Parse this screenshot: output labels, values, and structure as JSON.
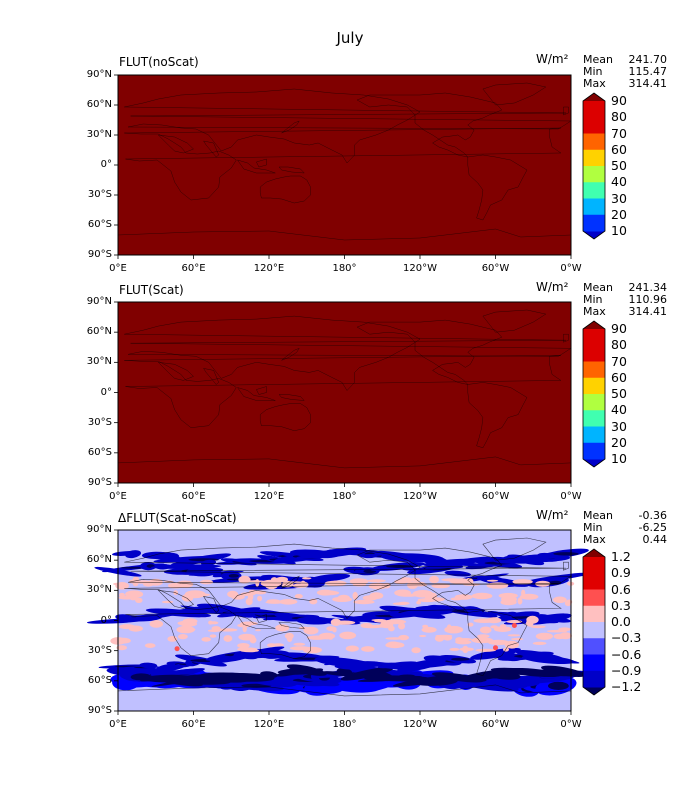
{
  "figure": {
    "title": "July"
  },
  "chart_data": [
    {
      "type": "heatmap",
      "title": "FLUT(noScat)",
      "units": "W/m²",
      "stats": {
        "labels": [
          "Mean",
          "Min",
          "Max"
        ],
        "values": [
          "241.70",
          "115.47",
          "314.41"
        ]
      },
      "x_ticks": [
        "0°E",
        "60°E",
        "120°E",
        "180°",
        "120°W",
        "60°W",
        "0°W"
      ],
      "y_ticks": [
        "90°N",
        "60°N",
        "30°N",
        "0°",
        "30°S",
        "60°S",
        "90°S"
      ],
      "colorbar": {
        "levels": [
          10,
          20,
          30,
          40,
          50,
          60,
          70,
          80,
          90
        ],
        "labels": [
          "90",
          "80",
          "70",
          "60",
          "50",
          "40",
          "30",
          "20",
          "10"
        ],
        "colors": [
          "#0000c8",
          "#0032ff",
          "#00b4ff",
          "#40ffb0",
          "#b0ff40",
          "#ffd200",
          "#ff6400",
          "#dc0000",
          "#800000"
        ],
        "extend": "both"
      },
      "field": "uniform above colorbar max",
      "fill_color": "#800000"
    },
    {
      "type": "heatmap",
      "title": "FLUT(Scat)",
      "units": "W/m²",
      "stats": {
        "labels": [
          "Mean",
          "Min",
          "Max"
        ],
        "values": [
          "241.34",
          "110.96",
          "314.41"
        ]
      },
      "x_ticks": [
        "0°E",
        "60°E",
        "120°E",
        "180°",
        "120°W",
        "60°W",
        "0°W"
      ],
      "y_ticks": [
        "90°N",
        "60°N",
        "30°N",
        "0°",
        "30°S",
        "60°S",
        "90°S"
      ],
      "colorbar": {
        "levels": [
          10,
          20,
          30,
          40,
          50,
          60,
          70,
          80,
          90
        ],
        "labels": [
          "90",
          "80",
          "70",
          "60",
          "50",
          "40",
          "30",
          "20",
          "10"
        ],
        "colors": [
          "#0000c8",
          "#0032ff",
          "#00b4ff",
          "#40ffb0",
          "#b0ff40",
          "#ffd200",
          "#ff6400",
          "#dc0000",
          "#800000"
        ],
        "extend": "both"
      },
      "field": "uniform above colorbar max",
      "fill_color": "#800000"
    },
    {
      "type": "heatmap",
      "title": "ΔFLUT(Scat-noScat)",
      "units": "W/m²",
      "stats": {
        "labels": [
          "Mean",
          "Min",
          "Max"
        ],
        "values": [
          "-0.36",
          "-6.25",
          "0.44"
        ]
      },
      "x_ticks": [
        "0°E",
        "60°E",
        "120°E",
        "180°",
        "120°W",
        "60°W",
        "0°W"
      ],
      "y_ticks": [
        "90°N",
        "60°N",
        "30°N",
        "0°",
        "30°S",
        "60°S",
        "90°S"
      ],
      "colorbar": {
        "levels": [
          -1.2,
          -0.9,
          -0.6,
          -0.3,
          0.0,
          0.3,
          0.6,
          0.9,
          1.2
        ],
        "labels": [
          "1.2",
          "0.9",
          "0.6",
          "0.3",
          "0.0",
          "−0.3",
          "−0.6",
          "−0.9",
          "−1.2"
        ],
        "colors": [
          "#00005a",
          "#0000c8",
          "#0000ff",
          "#5050ff",
          "#c0c0ff",
          "#ffc0c0",
          "#ff5050",
          "#e00000",
          "#800000"
        ],
        "extend": "both"
      },
      "field": "mostly near zero (light blue) with negative bands in storm tracks/ITCZ, small positive patches",
      "fill_color": "#c0c0ff"
    }
  ]
}
